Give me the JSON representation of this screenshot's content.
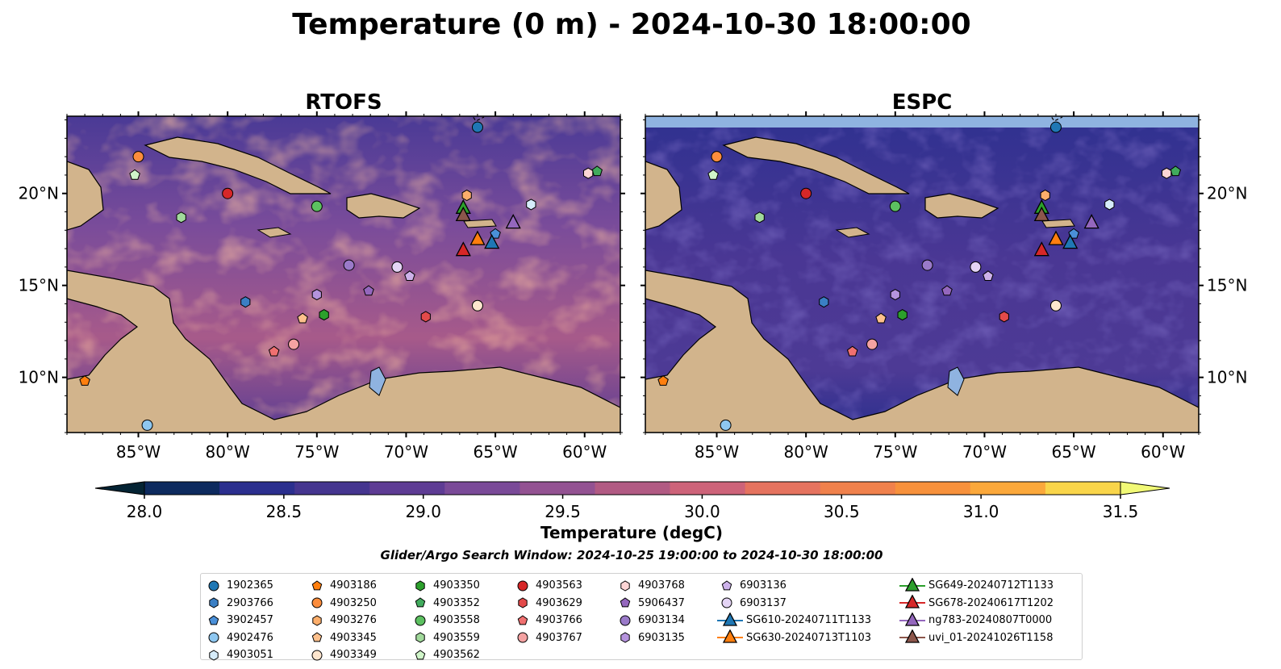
{
  "chart_data": {
    "type": "heatmap",
    "title": "Temperature (0 m) - 2024-10-30 18:00:00",
    "panels": [
      {
        "title": "RTOFS",
        "field_style": "warm"
      },
      {
        "title": "ESPC",
        "field_style": "cool"
      }
    ],
    "lon_range": [
      -89,
      -58
    ],
    "lat_range": [
      7,
      24.2
    ],
    "x_ticks": [
      -85,
      -80,
      -75,
      -70,
      -65,
      -60
    ],
    "x_tick_labels": [
      "85°W",
      "80°W",
      "75°W",
      "70°W",
      "65°W",
      "60°W"
    ],
    "y_ticks": [
      10,
      15,
      20
    ],
    "y_tick_labels": [
      "10°N",
      "15°N",
      "20°N"
    ],
    "colorbar": {
      "label": "Temperature (degC)",
      "min": 28.0,
      "max": 31.5,
      "step": 0.25,
      "ticks": [
        "28.0",
        "28.5",
        "29.0",
        "29.5",
        "30.0",
        "30.5",
        "31.0",
        "31.5"
      ],
      "extend": "both",
      "colors": [
        "#042333",
        "#0d2a5e",
        "#2b2f8e",
        "#45358f",
        "#5e3c94",
        "#7a4a98",
        "#935292",
        "#b15a83",
        "#cd6379",
        "#e5735f",
        "#f0814c",
        "#f7913c",
        "#fba83b",
        "#f9d54a",
        "#f1f976"
      ]
    },
    "search_window": "Glider/Argo Search Window: 2024-10-25 19:00:00 to 2024-10-30 18:00:00",
    "argo_floats": [
      {
        "id": "1902365",
        "marker": "circle",
        "color": "#1f77b4",
        "lon": -66.0,
        "lat": 23.6
      },
      {
        "id": "2903766",
        "marker": "hexagon",
        "color": "#3a7fc4",
        "lon": -79.0,
        "lat": 14.1
      },
      {
        "id": "3902457",
        "marker": "pentagon",
        "color": "#4a90d9",
        "lon": -65.0,
        "lat": 17.8
      },
      {
        "id": "4902476",
        "marker": "circle",
        "color": "#8ec7f0",
        "lon": -84.5,
        "lat": 7.4
      },
      {
        "id": "4903051",
        "marker": "hexagon",
        "color": "#d6ecfa",
        "lon": -63.0,
        "lat": 19.4
      },
      {
        "id": "4903186",
        "marker": "pentagon",
        "color": "#ff7f0e",
        "lon": -88.0,
        "lat": 9.8
      },
      {
        "id": "4903250",
        "marker": "circle",
        "color": "#fd8d3c",
        "lon": -85.0,
        "lat": 22.0
      },
      {
        "id": "4903276",
        "marker": "hexagon",
        "color": "#fdae6b",
        "lon": -66.6,
        "lat": 19.9
      },
      {
        "id": "4903345",
        "marker": "pentagon",
        "color": "#fdc08c",
        "lon": -75.8,
        "lat": 13.2
      },
      {
        "id": "4903349",
        "marker": "circle",
        "color": "#fee6ce",
        "lon": -66.0,
        "lat": 13.9
      },
      {
        "id": "4903350",
        "marker": "hexagon",
        "color": "#2ca02c",
        "lon": -74.6,
        "lat": 13.4
      },
      {
        "id": "4903352",
        "marker": "pentagon",
        "color": "#41ab5d",
        "lon": -59.3,
        "lat": 21.2
      },
      {
        "id": "4903558",
        "marker": "circle",
        "color": "#5cc060",
        "lon": -75.0,
        "lat": 19.3
      },
      {
        "id": "4903559",
        "marker": "hexagon",
        "color": "#a1d99b",
        "lon": -82.6,
        "lat": 18.7
      },
      {
        "id": "4903562",
        "marker": "pentagon",
        "color": "#d0f5c9",
        "lon": -85.2,
        "lat": 21.0
      },
      {
        "id": "4903563",
        "marker": "circle",
        "color": "#d62728",
        "lon": -80.0,
        "lat": 20.0
      },
      {
        "id": "4903629",
        "marker": "hexagon",
        "color": "#e34a4a",
        "lon": -68.9,
        "lat": 13.3
      },
      {
        "id": "4903766",
        "marker": "pentagon",
        "color": "#f07070",
        "lon": -77.4,
        "lat": 11.4
      },
      {
        "id": "4903767",
        "marker": "circle",
        "color": "#f4a2a2",
        "lon": -76.3,
        "lat": 11.8
      },
      {
        "id": "4903768",
        "marker": "hexagon",
        "color": "#fcd5d5",
        "lon": -59.8,
        "lat": 21.1
      },
      {
        "id": "5906437",
        "marker": "pentagon",
        "color": "#9467bd",
        "lon": -72.1,
        "lat": 14.7
      },
      {
        "id": "6903134",
        "marker": "circle",
        "color": "#9a7ac9",
        "lon": -73.2,
        "lat": 16.1
      },
      {
        "id": "6903135",
        "marker": "hexagon",
        "color": "#b593dd",
        "lon": -75.0,
        "lat": 14.5
      },
      {
        "id": "6903136",
        "marker": "pentagon",
        "color": "#cdb2ea",
        "lon": -69.8,
        "lat": 15.5
      },
      {
        "id": "6903137",
        "marker": "circle",
        "color": "#e4d4f5",
        "lon": -70.5,
        "lat": 16.0
      }
    ],
    "gliders": [
      {
        "id": "SG610-20240711T1133",
        "color": "#1f77b4",
        "lon": -65.2,
        "lat": 17.3
      },
      {
        "id": "SG630-20240713T1103",
        "color": "#ff7f0e",
        "lon": -66.0,
        "lat": 17.5
      },
      {
        "id": "SG649-20240712T1133",
        "color": "#2ca02c",
        "lon": -66.8,
        "lat": 19.2
      },
      {
        "id": "SG678-20240617T1202",
        "color": "#d62728",
        "lon": -66.8,
        "lat": 16.9
      },
      {
        "id": "ng783-20240807T0000",
        "color": "#9467bd",
        "lon": -64.0,
        "lat": 18.4
      },
      {
        "id": "uvi_01-20241026T1158",
        "color": "#8c564b",
        "lon": -66.8,
        "lat": 18.8
      }
    ]
  }
}
